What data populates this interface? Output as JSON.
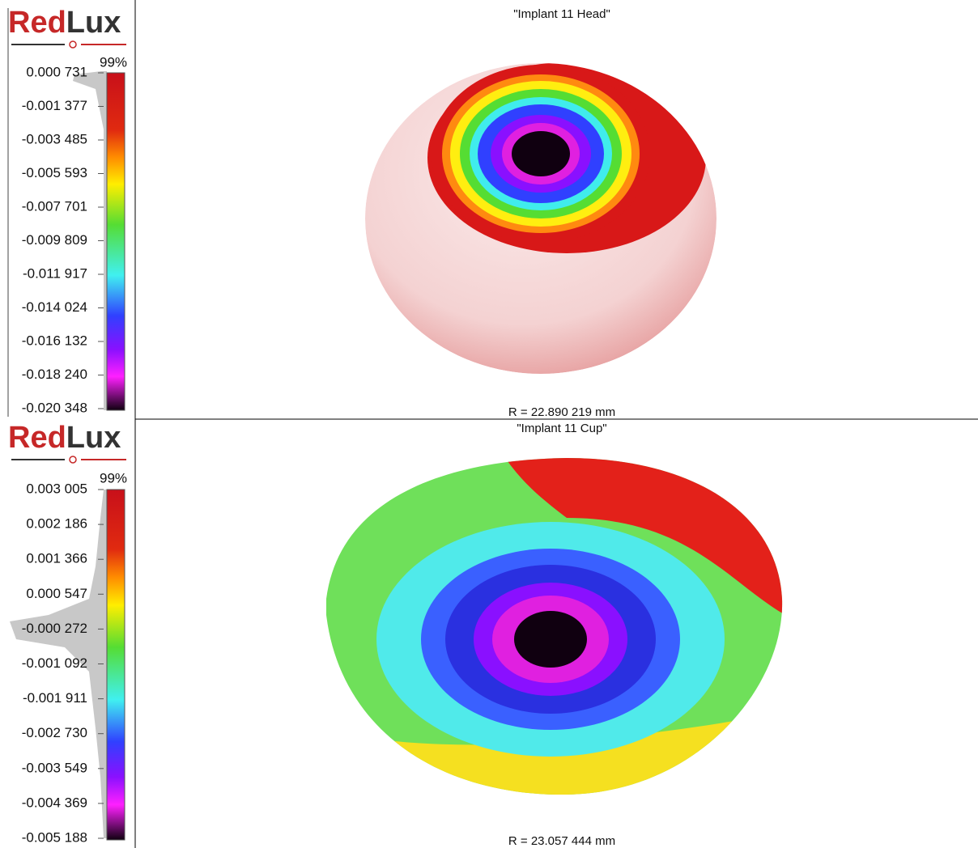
{
  "panels": [
    {
      "logo": {
        "red": "Red",
        "lux": "Lux"
      },
      "percent": "99%",
      "title": "\"Implant 11 Head\"",
      "radius": "R = 22.890 219 mm",
      "scale": [
        "0.000 731",
        "-0.001 377",
        "-0.003 485",
        "-0.005 593",
        "-0.007 701",
        "-0.009 809",
        "-0.011 917",
        "-0.014 024",
        "-0.016 132",
        "-0.018 240",
        "-0.020 348"
      ]
    },
    {
      "logo": {
        "red": "Red",
        "lux": "Lux"
      },
      "percent": "99%",
      "title": "\"Implant 11 Cup\"",
      "radius": "R = 23.057 444 mm",
      "scale": [
        "0.003 005",
        "0.002 186",
        "0.001 366",
        "0.000 547",
        "-0.000 272",
        "-0.001 092",
        "-0.001 911",
        "-0.002 730",
        "-0.003 549",
        "-0.004 369",
        "-0.005 188"
      ]
    }
  ]
}
